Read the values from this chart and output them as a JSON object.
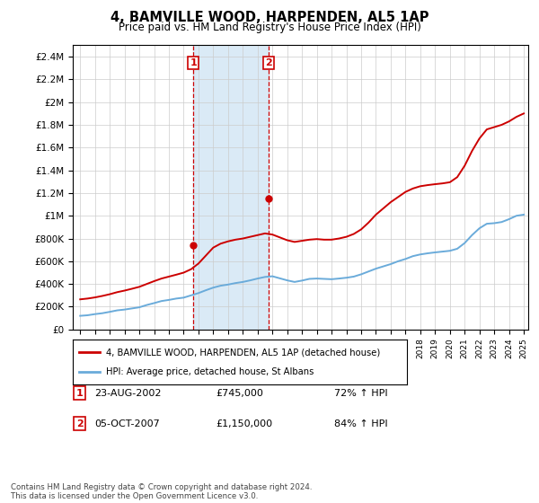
{
  "title": "4, BAMVILLE WOOD, HARPENDEN, AL5 1AP",
  "subtitle": "Price paid vs. HM Land Registry's House Price Index (HPI)",
  "ylim": [
    0,
    2500000
  ],
  "yticks": [
    0,
    200000,
    400000,
    600000,
    800000,
    1000000,
    1200000,
    1400000,
    1600000,
    1800000,
    2000000,
    2200000,
    2400000
  ],
  "ytick_labels": [
    "£0",
    "£200K",
    "£400K",
    "£600K",
    "£800K",
    "£1M",
    "£1.2M",
    "£1.4M",
    "£1.6M",
    "£1.8M",
    "£2M",
    "£2.2M",
    "£2.4M"
  ],
  "x_start_year": 1995,
  "x_end_year": 2025,
  "sale1_year": 2002.65,
  "sale1_price": 745000,
  "sale2_year": 2007.75,
  "sale2_price": 1150000,
  "legend1": "4, BAMVILLE WOOD, HARPENDEN, AL5 1AP (detached house)",
  "legend2": "HPI: Average price, detached house, St Albans",
  "annotation1_label": "1",
  "annotation1_date": "23-AUG-2002",
  "annotation1_price": "£745,000",
  "annotation1_pct": "72% ↑ HPI",
  "annotation2_label": "2",
  "annotation2_date": "05-OCT-2007",
  "annotation2_price": "£1,150,000",
  "annotation2_pct": "84% ↑ HPI",
  "line_color_red": "#cc0000",
  "line_color_blue": "#6aabda",
  "shade_color": "#daeaf6",
  "footer": "Contains HM Land Registry data © Crown copyright and database right 2024.\nThis data is licensed under the Open Government Licence v3.0.",
  "hpi_data_years": [
    1995,
    1995.5,
    1996,
    1996.5,
    1997,
    1997.5,
    1998,
    1998.5,
    1999,
    1999.5,
    2000,
    2000.5,
    2001,
    2001.5,
    2002,
    2002.5,
    2003,
    2003.5,
    2004,
    2004.5,
    2005,
    2005.5,
    2006,
    2006.5,
    2007,
    2007.5,
    2008,
    2008.5,
    2009,
    2009.5,
    2010,
    2010.5,
    2011,
    2011.5,
    2012,
    2012.5,
    2013,
    2013.5,
    2014,
    2014.5,
    2015,
    2015.5,
    2016,
    2016.5,
    2017,
    2017.5,
    2018,
    2018.5,
    2019,
    2019.5,
    2020,
    2020.5,
    2021,
    2021.5,
    2022,
    2022.5,
    2023,
    2023.5,
    2024,
    2024.5,
    2025
  ],
  "hpi_values": [
    120000,
    125000,
    135000,
    143000,
    155000,
    168000,
    175000,
    185000,
    195000,
    215000,
    232000,
    250000,
    260000,
    272000,
    280000,
    300000,
    320000,
    345000,
    368000,
    385000,
    395000,
    408000,
    418000,
    432000,
    448000,
    462000,
    468000,
    450000,
    432000,
    418000,
    430000,
    445000,
    448000,
    445000,
    442000,
    448000,
    455000,
    465000,
    485000,
    510000,
    535000,
    555000,
    575000,
    600000,
    620000,
    645000,
    660000,
    670000,
    678000,
    685000,
    692000,
    710000,
    760000,
    830000,
    890000,
    930000,
    935000,
    945000,
    970000,
    1000000,
    1010000
  ],
  "price_data_years": [
    1995,
    1995.5,
    1996,
    1996.5,
    1997,
    1997.5,
    1998,
    1998.5,
    1999,
    1999.5,
    2000,
    2000.5,
    2001,
    2001.5,
    2002,
    2002.5,
    2003,
    2003.5,
    2004,
    2004.5,
    2005,
    2005.5,
    2006,
    2006.5,
    2007,
    2007.5,
    2008,
    2008.5,
    2009,
    2009.5,
    2010,
    2010.5,
    2011,
    2011.5,
    2012,
    2012.5,
    2013,
    2013.5,
    2014,
    2014.5,
    2015,
    2015.5,
    2016,
    2016.5,
    2017,
    2017.5,
    2018,
    2018.5,
    2019,
    2019.5,
    2020,
    2020.5,
    2021,
    2021.5,
    2022,
    2022.5,
    2023,
    2023.5,
    2024,
    2024.5,
    2025
  ],
  "price_values": [
    265000,
    272000,
    282000,
    295000,
    310000,
    328000,
    342000,
    358000,
    375000,
    400000,
    425000,
    448000,
    465000,
    482000,
    500000,
    530000,
    580000,
    650000,
    720000,
    755000,
    775000,
    790000,
    800000,
    815000,
    830000,
    845000,
    835000,
    810000,
    785000,
    770000,
    780000,
    790000,
    795000,
    790000,
    790000,
    800000,
    815000,
    840000,
    880000,
    940000,
    1010000,
    1065000,
    1120000,
    1165000,
    1210000,
    1240000,
    1260000,
    1270000,
    1278000,
    1285000,
    1295000,
    1340000,
    1440000,
    1570000,
    1680000,
    1760000,
    1780000,
    1800000,
    1830000,
    1870000,
    1900000
  ]
}
